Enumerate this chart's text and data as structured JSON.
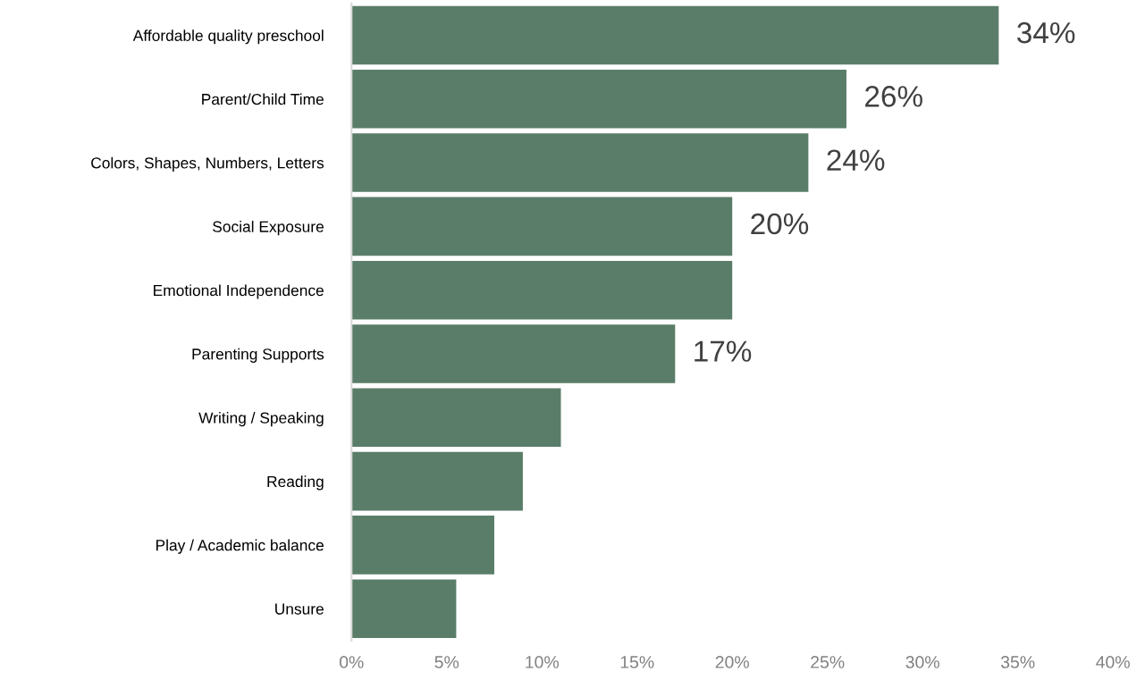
{
  "chart_data": {
    "type": "bar",
    "orientation": "horizontal",
    "categories": [
      "Affordable quality preschool",
      "Parent/Child Time",
      "Colors, Shapes, Numbers, Letters",
      "Social Exposure",
      "Emotional Independence",
      "Parenting Supports",
      "Writing / Speaking",
      "Reading",
      "Play / Academic balance",
      "Unsure"
    ],
    "values": [
      34,
      26,
      24,
      20,
      20,
      17,
      11,
      9,
      7.5,
      5.5
    ],
    "value_labels": [
      "34%",
      "26%",
      "24%",
      "20%",
      null,
      "17%",
      null,
      null,
      null,
      null
    ],
    "color": "#5a7d69",
    "xlim": [
      0,
      40
    ],
    "xticks": [
      {
        "value": 0,
        "label": "0%"
      },
      {
        "value": 5,
        "label": "5%"
      },
      {
        "value": 10,
        "label": "10%"
      },
      {
        "value": 15,
        "label": "15%"
      },
      {
        "value": 20,
        "label": "20%"
      },
      {
        "value": 25,
        "label": "25%"
      },
      {
        "value": 30,
        "label": "30%"
      },
      {
        "value": 35,
        "label": "35%"
      },
      {
        "value": 40,
        "label": "40%"
      }
    ],
    "grid": false,
    "legend": false
  }
}
